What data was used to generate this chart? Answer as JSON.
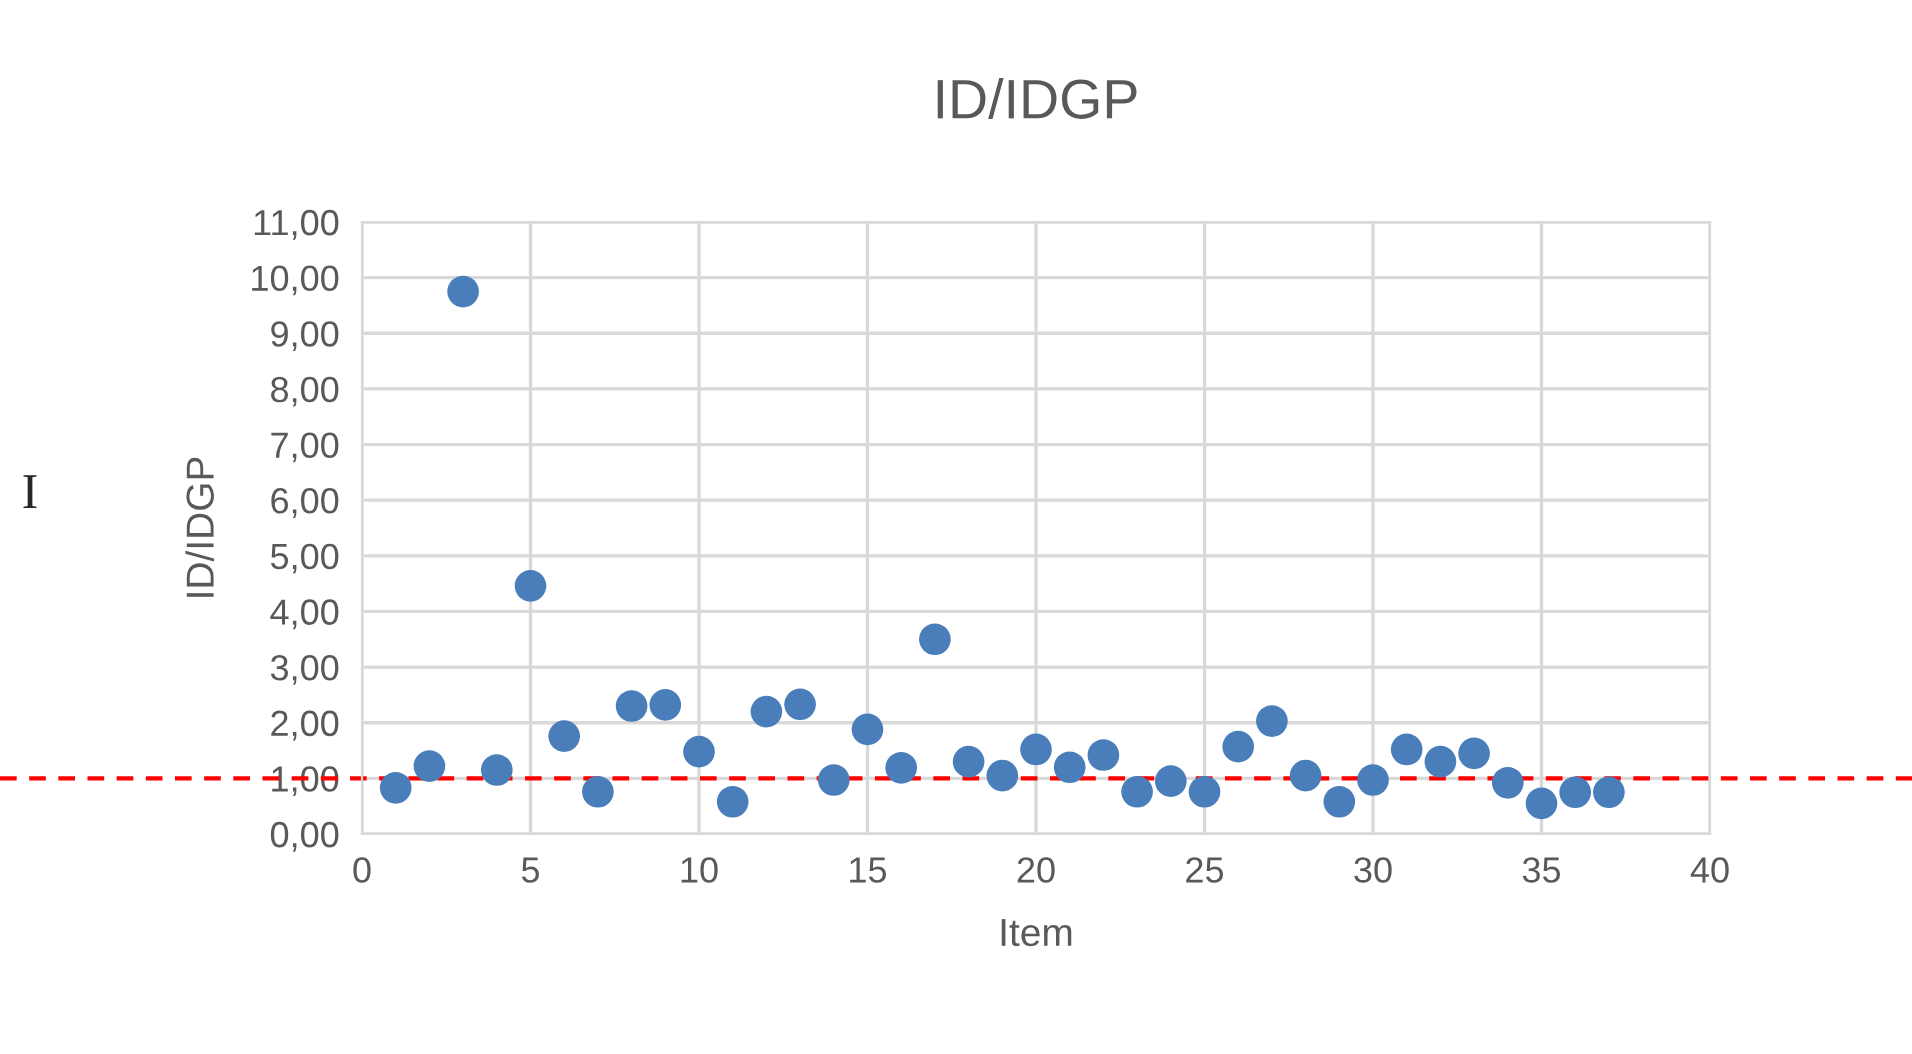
{
  "chart_data": {
    "type": "scatter",
    "title": "ID/IDGP",
    "xlabel": "Item",
    "ylabel": "ID/IDGP",
    "x": [
      1,
      2,
      3,
      4,
      5,
      6,
      7,
      8,
      9,
      10,
      11,
      12,
      13,
      14,
      15,
      16,
      17,
      18,
      19,
      20,
      21,
      22,
      23,
      24,
      25,
      26,
      27,
      28,
      29,
      30,
      31,
      32,
      33,
      34,
      35,
      36,
      37
    ],
    "series": [
      {
        "color": "#4a7ebb",
        "values": [
          0.83,
          1.22,
          9.75,
          1.15,
          4.46,
          1.76,
          0.76,
          2.3,
          2.32,
          1.48,
          0.58,
          2.2,
          2.33,
          0.97,
          1.88,
          1.19,
          3.5,
          1.3,
          1.05,
          1.52,
          1.2,
          1.42,
          0.76,
          0.95,
          0.76,
          1.57,
          2.03,
          1.05,
          0.58,
          0.97,
          1.52,
          1.3,
          1.45,
          0.92,
          0.55,
          0.75,
          0.75
        ]
      }
    ],
    "marker": "circle",
    "xlim": [
      0,
      40
    ],
    "xticks": [
      0,
      5,
      10,
      15,
      20,
      25,
      30,
      35,
      40
    ],
    "ylim": [
      0,
      11
    ],
    "yticks": [
      {
        "value": 0,
        "label": "0,00"
      },
      {
        "value": 1,
        "label": "1,00"
      },
      {
        "value": 2,
        "label": "2,00"
      },
      {
        "value": 3,
        "label": "3,00"
      },
      {
        "value": 4,
        "label": "4,00"
      },
      {
        "value": 5,
        "label": "5,00"
      },
      {
        "value": 6,
        "label": "6,00"
      },
      {
        "value": 7,
        "label": "7,00"
      },
      {
        "value": 8,
        "label": "8,00"
      },
      {
        "value": 9,
        "label": "9,00"
      },
      {
        "value": 10,
        "label": "10,00"
      },
      {
        "value": 11,
        "label": "11,00"
      }
    ],
    "grid": true,
    "legend": false,
    "ref_lines": [
      {
        "axis": "y",
        "value": 1,
        "color": "#ff0000",
        "line_style": "dashed"
      }
    ],
    "annotations": [
      "I"
    ]
  }
}
